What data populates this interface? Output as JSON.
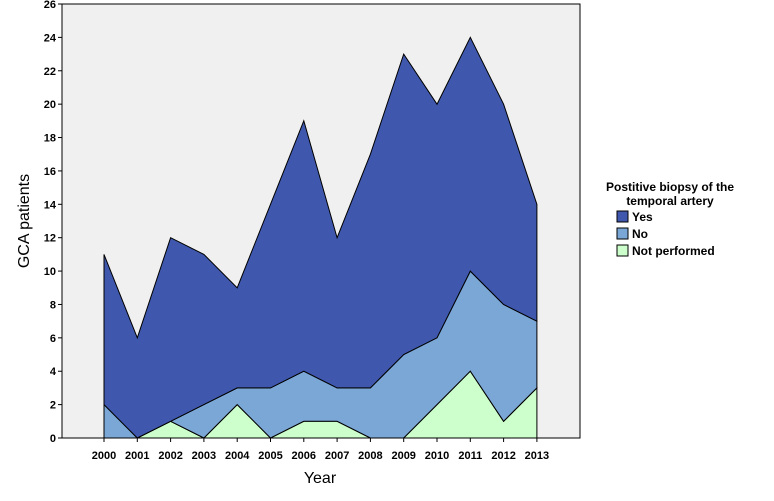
{
  "chart_data": {
    "type": "area",
    "stacked": true,
    "title": "",
    "xlabel": "Year",
    "ylabel": "GCA patients",
    "x": [
      "2000",
      "2001",
      "2002",
      "2003",
      "2004",
      "2005",
      "2006",
      "2007",
      "2008",
      "2009",
      "2010",
      "2011",
      "2012",
      "2013"
    ],
    "ylim": [
      0,
      26
    ],
    "yticks": [
      0,
      2,
      4,
      6,
      8,
      10,
      12,
      14,
      16,
      18,
      20,
      22,
      24,
      26
    ],
    "grid": false,
    "legend": {
      "title_lines": [
        "Postitive biopsy of the",
        "temporal artery"
      ],
      "placement": "right"
    },
    "series": [
      {
        "name": "Not performed",
        "color": "#ccffcc",
        "values": [
          0,
          0,
          1,
          0,
          2,
          0,
          1,
          1,
          0,
          0,
          2,
          4,
          1,
          3
        ]
      },
      {
        "name": "No",
        "color": "#7ba7d7",
        "values": [
          2,
          0,
          0,
          2,
          1,
          3,
          3,
          2,
          3,
          5,
          4,
          6,
          7,
          4
        ]
      },
      {
        "name": "Yes",
        "color": "#3f58ad",
        "values": [
          9,
          6,
          11,
          9,
          6,
          11,
          15,
          9,
          14,
          18,
          14,
          14,
          12,
          7
        ]
      }
    ],
    "legend_order": [
      "Yes",
      "No",
      "Not performed"
    ]
  },
  "colors": {
    "plot_background": "#f0f0f0",
    "outline": "#000000"
  }
}
